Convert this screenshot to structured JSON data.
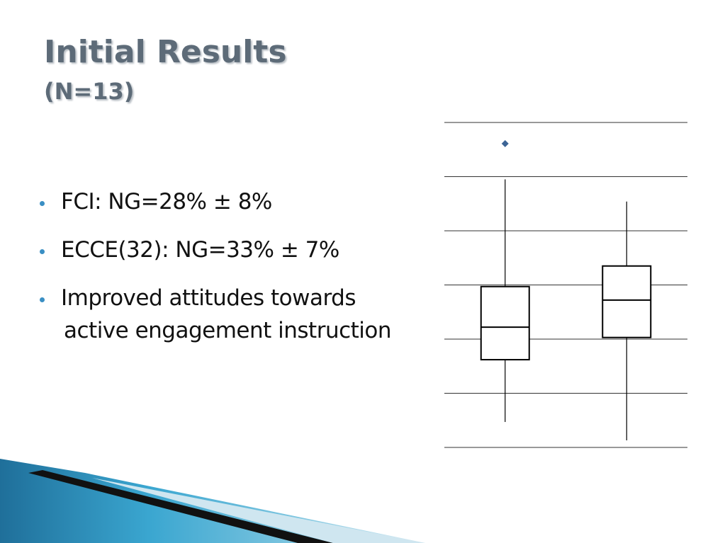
{
  "title": "Initial Results",
  "subtitle": "(N=13)",
  "bullets": [
    [
      "FCI: NG=28% ± 8%"
    ],
    [
      "ECCE(32): NG=33% ± 7%"
    ],
    [
      "Improved attitudes towards",
      "active engagement instruction"
    ]
  ],
  "chart_data": {
    "type": "box",
    "ylim": [
      0,
      6
    ],
    "gridlines": [
      0,
      1,
      2,
      3,
      4,
      5,
      6
    ],
    "grid": true,
    "color": "#000000",
    "outlier_color": "#3c6496",
    "boxes": [
      {
        "min": 0.47,
        "q1": 1.62,
        "median": 2.22,
        "q3": 2.97,
        "max": 4.95,
        "outliers": [
          5.61
        ]
      },
      {
        "min": 0.13,
        "q1": 2.03,
        "median": 2.72,
        "q3": 3.35,
        "max": 4.54,
        "outliers": []
      }
    ]
  }
}
